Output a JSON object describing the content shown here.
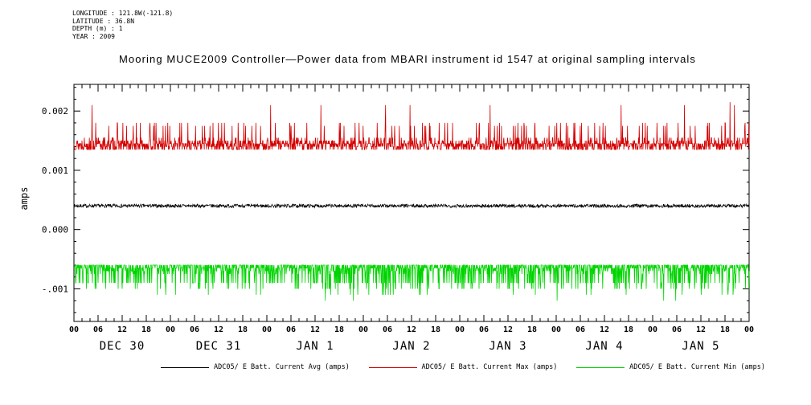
{
  "header": {
    "lines": [
      "LONGITUDE : 121.8W(-121.8)",
      "LATITUDE : 36.8N",
      "DEPTH (m) : 1",
      "YEAR : 2009"
    ]
  },
  "chart_data": {
    "type": "line",
    "title": "Mooring MUCE2009 Controller—Power data from MBARI instrument id 1547 at original sampling intervals",
    "ylabel": "amps",
    "ylim": [
      -0.00155,
      0.00245
    ],
    "ytick_values": [
      0.002,
      0.001,
      0.0,
      -0.001
    ],
    "ytick_labels": [
      "0.002",
      "0.001",
      "0.000",
      "-.001"
    ],
    "ytick_minor_step": 0.0002,
    "x_total_hours": 168,
    "x_major_step_hours": 6,
    "x_minor_step_hours": 2,
    "xtick_hour_labels": [
      "00",
      "06",
      "12",
      "18"
    ],
    "day_labels": [
      "DEC 30",
      "DEC 31",
      "JAN 1",
      "JAN 2",
      "JAN 3",
      "JAN 4",
      "JAN 5"
    ],
    "grid": false,
    "legend_position": "bottom",
    "series": [
      {
        "id": "avg",
        "name": "ADC05/ E Batt. Current Avg (amps)",
        "color": "#000000",
        "model": "noise",
        "baseline": 0.0004,
        "noise_amp": 6e-05,
        "points": 2016,
        "seed": 7,
        "width": 0.7
      },
      {
        "id": "max",
        "name": "ADC05/ E Batt. Current Max (amps)",
        "color": "#d40000",
        "model": "levels",
        "levels": [
          0.00135,
          0.0014,
          0.00145,
          0.0015,
          0.00155,
          0.00175,
          0.0018,
          0.0021,
          0.00215
        ],
        "weights": [
          0.21,
          0.2,
          0.33,
          0.13,
          0.06,
          0.025,
          0.035,
          0.003,
          0.0015
        ],
        "points": 2016,
        "seed": 13,
        "width": 0.8
      },
      {
        "id": "min",
        "name": "ADC05/ E Batt. Current Min (amps)",
        "color": "#00d400",
        "model": "levels",
        "levels": [
          -0.0006,
          -0.00065,
          -0.0007,
          -0.00075,
          -0.0009,
          -0.001,
          -0.0011,
          -0.0012
        ],
        "weights": [
          0.42,
          0.22,
          0.1,
          0.05,
          0.13,
          0.06,
          0.012,
          0.004
        ],
        "points": 2016,
        "seed": 21,
        "width": 0.8
      }
    ]
  }
}
